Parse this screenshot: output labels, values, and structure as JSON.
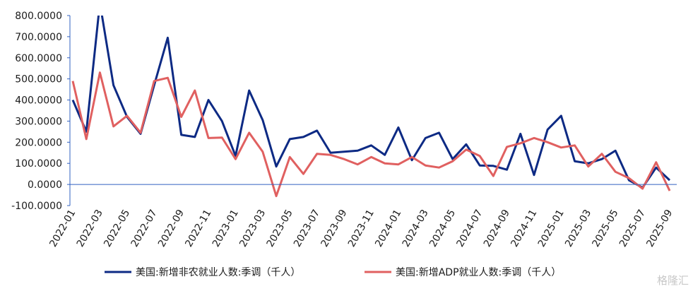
{
  "chart_data": {
    "type": "line",
    "categories": [
      "2022-01",
      null,
      "2022-03",
      null,
      "2022-05",
      null,
      "2022-07",
      null,
      "2022-09",
      null,
      "2022-11",
      null,
      "2023-01",
      null,
      "2023-03",
      null,
      "2023-05",
      null,
      "2023-07",
      null,
      "2023-09",
      null,
      "2023-11",
      null,
      "2024-01",
      null,
      "2024-03",
      null,
      "2024-05",
      null,
      "2024-07",
      null,
      "2024-09",
      null,
      "2024-11",
      null,
      "2025-01",
      null,
      "2025-03",
      null,
      "2025-05",
      null,
      "2025-07",
      null,
      "2025-09"
    ],
    "series": [
      {
        "name": "美国:新增非农就业人数:季调（千人）",
        "color": "#0d2a84",
        "values": [
          400,
          250,
          860,
          470,
          320,
          240,
          470,
          695,
          235,
          225,
          400,
          300,
          135,
          445,
          305,
          85,
          215,
          225,
          255,
          150,
          155,
          160,
          185,
          140,
          270,
          115,
          220,
          245,
          120,
          190,
          90,
          88,
          70,
          240,
          45,
          260,
          325,
          110,
          100,
          120,
          160,
          20,
          -15,
          80,
          20
        ]
      },
      {
        "name": "美国:新增ADP就业人数:季调（千人）",
        "color": "#e06060",
        "values": [
          490,
          215,
          530,
          275,
          325,
          245,
          490,
          505,
          320,
          445,
          220,
          222,
          120,
          245,
          155,
          -55,
          130,
          50,
          145,
          140,
          120,
          95,
          130,
          100,
          95,
          130,
          90,
          80,
          110,
          165,
          135,
          40,
          178,
          195,
          220,
          200,
          175,
          185,
          85,
          145,
          60,
          30,
          -20,
          105,
          -30
        ]
      }
    ],
    "ylim": [
      -100,
      800
    ],
    "yticks": [
      {
        "value": -100,
        "label": "-100.0000"
      },
      {
        "value": 0,
        "label": "0.0000"
      },
      {
        "value": 100,
        "label": "100.0000"
      },
      {
        "value": 200,
        "label": "200.0000"
      },
      {
        "value": 300,
        "label": "300.0000"
      },
      {
        "value": 400,
        "label": "400.0000"
      },
      {
        "value": 500,
        "label": "500.0000"
      },
      {
        "value": 600,
        "label": "600.0000"
      },
      {
        "value": 700,
        "label": "700.0000"
      },
      {
        "value": 800,
        "label": "800.0000"
      }
    ],
    "legend": "bottom",
    "watermark": "格隆汇"
  }
}
